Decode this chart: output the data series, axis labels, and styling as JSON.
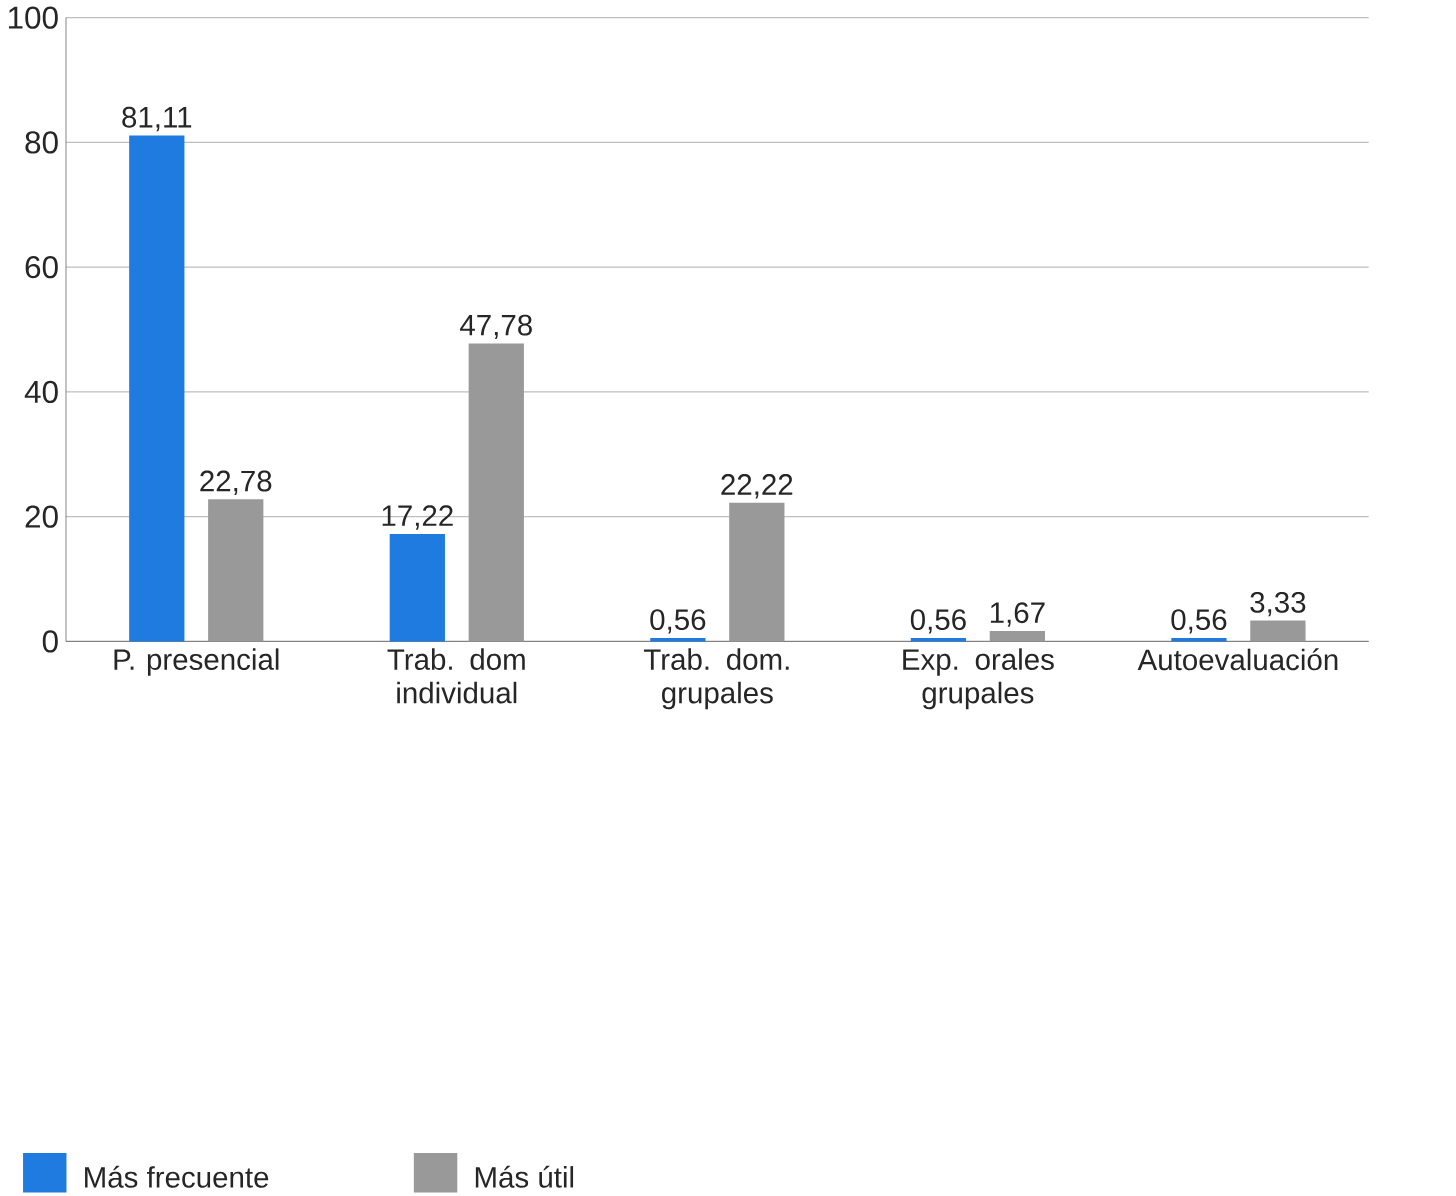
{
  "chart_data": {
    "type": "bar",
    "categories": [
      "P. presencial",
      "Trab. dom individual",
      "Trab. dom. grupales",
      "Exp. orales grupales",
      "Autoevaluación"
    ],
    "series": [
      {
        "name": "Más frecuente",
        "color": "#1f7be0",
        "values": [
          81.11,
          17.22,
          0.56,
          0.56,
          0.56
        ],
        "value_labels": [
          "81,11",
          "17,22",
          "0,56",
          "0,56",
          "0,56"
        ]
      },
      {
        "name": "Más útil",
        "color": "#999999",
        "values": [
          22.78,
          47.78,
          22.22,
          1.67,
          3.33
        ],
        "value_labels": [
          "22,78",
          "47,78",
          "22,22",
          "1,67",
          "3,33"
        ]
      }
    ],
    "ylim": [
      0,
      100
    ],
    "yticks": [
      0,
      20,
      40,
      60,
      80,
      100
    ],
    "grid": "y",
    "legend": "bottom left"
  }
}
